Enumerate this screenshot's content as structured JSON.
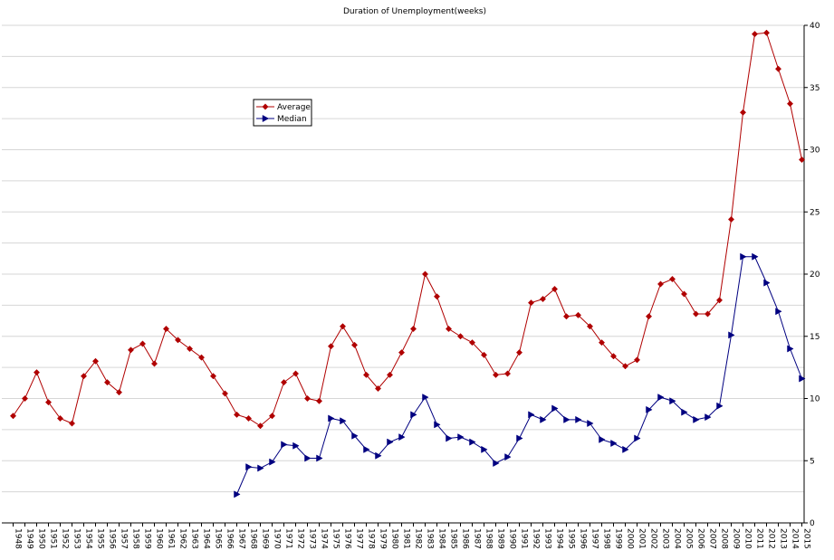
{
  "chart_data": {
    "type": "line",
    "title": "Duration of Unemployment(weeks)",
    "xlabel": "",
    "ylabel": "",
    "ylim": [
      0,
      40
    ],
    "yticks": [
      "0",
      "5",
      "10",
      "15",
      "20",
      "25",
      "30",
      "35",
      "40"
    ],
    "grid": true,
    "legend_position": "upper-left",
    "x": [
      "1948",
      "1949",
      "1950",
      "1951",
      "1952",
      "1953",
      "1954",
      "1955",
      "1956",
      "1957",
      "1958",
      "1959",
      "1960",
      "1961",
      "1962",
      "1963",
      "1964",
      "1965",
      "1966",
      "1967",
      "1968",
      "1969",
      "1970",
      "1971",
      "1972",
      "1973",
      "1974",
      "1975",
      "1976",
      "1977",
      "1978",
      "1979",
      "1980",
      "1981",
      "1982",
      "1983",
      "1984",
      "1985",
      "1986",
      "1987",
      "1988",
      "1989",
      "1990",
      "1991",
      "1992",
      "1993",
      "1994",
      "1995",
      "1996",
      "1997",
      "1998",
      "1999",
      "2000",
      "2001",
      "2002",
      "2003",
      "2004",
      "2005",
      "2006",
      "2007",
      "2008",
      "2009",
      "2010",
      "2011",
      "2012",
      "2013",
      "2014",
      "2015"
    ],
    "series": [
      {
        "name": "Average",
        "color": "#b00000",
        "marker": "diamond",
        "values": [
          8.6,
          10.0,
          12.1,
          9.7,
          8.4,
          8.0,
          11.8,
          13.0,
          11.3,
          10.5,
          13.9,
          14.4,
          12.8,
          15.6,
          14.7,
          14.0,
          13.3,
          11.8,
          10.4,
          8.7,
          8.4,
          7.8,
          8.6,
          11.3,
          12.0,
          10.0,
          9.8,
          14.2,
          15.8,
          14.3,
          11.9,
          10.8,
          11.9,
          13.7,
          15.6,
          20.0,
          18.2,
          15.6,
          15.0,
          14.5,
          13.5,
          11.9,
          12.0,
          13.7,
          17.7,
          18.0,
          18.8,
          16.6,
          16.7,
          15.8,
          14.5,
          13.4,
          12.6,
          13.1,
          16.6,
          19.2,
          19.6,
          18.4,
          16.8,
          16.8,
          17.9,
          24.4,
          33.0,
          39.3,
          39.4,
          36.5,
          33.7,
          29.2
        ]
      },
      {
        "name": "Median",
        "color": "#000080",
        "marker": "triangle-right",
        "values": [
          null,
          null,
          null,
          null,
          null,
          null,
          null,
          null,
          null,
          null,
          null,
          null,
          null,
          null,
          null,
          null,
          null,
          null,
          null,
          2.3,
          4.5,
          4.4,
          4.9,
          6.3,
          6.2,
          5.2,
          5.2,
          8.4,
          8.2,
          7.0,
          5.9,
          5.4,
          6.5,
          6.9,
          8.7,
          10.1,
          7.9,
          6.8,
          6.9,
          6.5,
          5.9,
          4.8,
          5.3,
          6.8,
          8.7,
          8.3,
          9.2,
          8.3,
          8.3,
          8.0,
          6.7,
          6.4,
          5.9,
          6.8,
          9.1,
          10.1,
          9.8,
          8.9,
          8.3,
          8.5,
          9.4,
          15.1,
          21.4,
          21.4,
          19.3,
          17.0,
          14.0,
          11.6
        ]
      }
    ]
  }
}
